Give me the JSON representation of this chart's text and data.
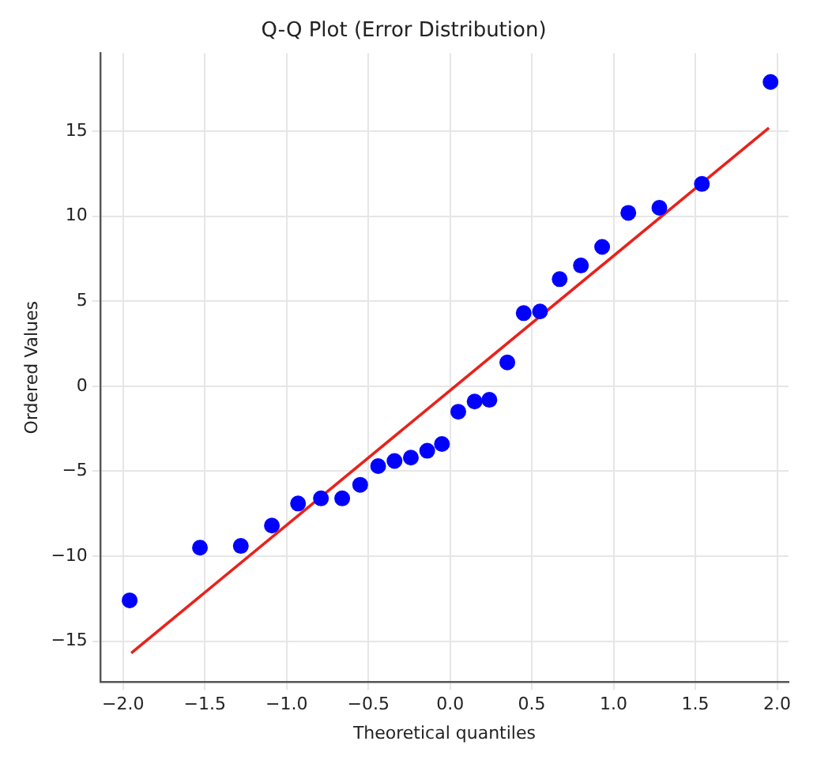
{
  "chart_data": {
    "type": "scatter",
    "title": "Q-Q Plot (Error Distribution)",
    "xlabel": "Theoretical quantiles",
    "ylabel": "Ordered Values",
    "series": [
      {
        "type": "scatter",
        "color": "#0000ff",
        "marker": "circle",
        "x": [
          -1.96,
          -1.53,
          -1.28,
          -1.09,
          -0.93,
          -0.79,
          -0.66,
          -0.55,
          -0.44,
          -0.34,
          -0.24,
          -0.14,
          -0.05,
          0.05,
          0.15,
          0.24,
          0.35,
          0.45,
          0.55,
          0.67,
          0.8,
          0.93,
          1.09,
          1.28,
          1.54,
          1.96
        ],
        "values": [
          -12.6,
          -9.5,
          -9.4,
          -8.2,
          -6.9,
          -6.6,
          -6.6,
          -5.8,
          -4.7,
          -4.4,
          -4.2,
          -3.8,
          -3.4,
          -1.5,
          -0.9,
          -0.8,
          1.4,
          4.3,
          4.4,
          6.3,
          7.1,
          8.2,
          10.2,
          10.5,
          11.9,
          17.9
        ]
      },
      {
        "type": "line",
        "color": "#e8221b",
        "marker": "none",
        "x": [
          -1.95,
          1.95
        ],
        "values": [
          -15.7,
          15.2
        ]
      }
    ],
    "xlim": [
      -2.14,
      2.07
    ],
    "ylim": [
      -17.4,
      19.6
    ],
    "xticks": [
      {
        "value": -2,
        "label": "−2.0"
      },
      {
        "value": -1.5,
        "label": "−1.5"
      },
      {
        "value": -1,
        "label": "−1.0"
      },
      {
        "value": -0.5,
        "label": "−0.5"
      },
      {
        "value": 0,
        "label": "0.0"
      },
      {
        "value": 0.5,
        "label": "0.5"
      },
      {
        "value": 1,
        "label": "1.0"
      },
      {
        "value": 1.5,
        "label": "1.5"
      },
      {
        "value": 2,
        "label": "2.0"
      }
    ],
    "yticks": [
      {
        "value": -15,
        "label": "−15"
      },
      {
        "value": -10,
        "label": "−10"
      },
      {
        "value": -5,
        "label": "−5"
      },
      0,
      5,
      10,
      15
    ],
    "grid": true,
    "legend": false
  }
}
